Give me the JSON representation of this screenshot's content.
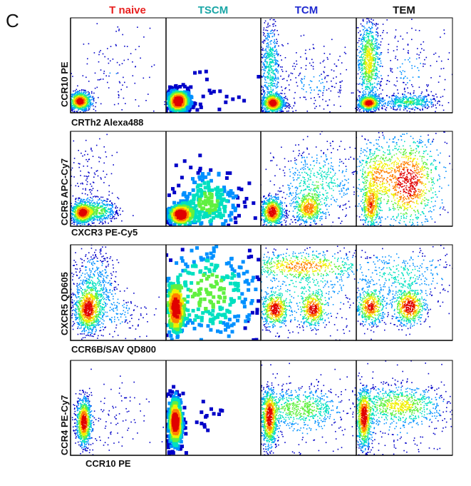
{
  "figure": {
    "panel_label": "C"
  },
  "chart_data": {
    "type": "scatter",
    "plot_style": "flow-cytometry pseudocolor density plots",
    "columns": [
      {
        "name": "T naive",
        "color": "#e8201f"
      },
      {
        "name": "TSCM",
        "color": "#1aa6a6"
      },
      {
        "name": "TCM",
        "color": "#1f2ad0"
      },
      {
        "name": "TEM",
        "color": "#111111"
      }
    ],
    "rows": [
      {
        "ylabel": "CCR10 PE",
        "xlabel": "CRTh2 Alexa488",
        "populations": [
          [
            {
              "x": 0.1,
              "y": 0.12,
              "sx": 0.06,
              "sy": 0.05,
              "w": 1.0,
              "n": 900
            },
            {
              "x": 0.45,
              "y": 0.4,
              "sx": 0.25,
              "sy": 0.3,
              "w": 0.12,
              "n": 120
            }
          ],
          [
            {
              "x": 0.13,
              "y": 0.12,
              "sx": 0.06,
              "sy": 0.06,
              "w": 1.0,
              "n": 420,
              "pix": 5
            },
            {
              "x": 0.45,
              "y": 0.2,
              "sx": 0.25,
              "sy": 0.15,
              "w": 0.1,
              "n": 30,
              "pix": 5
            }
          ],
          [
            {
              "x": 0.13,
              "y": 0.1,
              "sx": 0.06,
              "sy": 0.05,
              "w": 1.0,
              "n": 900
            },
            {
              "x": 0.1,
              "y": 0.5,
              "sx": 0.05,
              "sy": 0.25,
              "w": 0.4,
              "n": 500
            },
            {
              "x": 0.55,
              "y": 0.3,
              "sx": 0.25,
              "sy": 0.2,
              "w": 0.15,
              "n": 220
            }
          ],
          [
            {
              "x": 0.13,
              "y": 0.1,
              "sx": 0.06,
              "sy": 0.04,
              "w": 1.0,
              "n": 700
            },
            {
              "x": 0.13,
              "y": 0.55,
              "sx": 0.06,
              "sy": 0.22,
              "w": 0.7,
              "n": 800
            },
            {
              "x": 0.55,
              "y": 0.11,
              "sx": 0.15,
              "sy": 0.04,
              "w": 0.4,
              "n": 400
            },
            {
              "x": 0.55,
              "y": 0.45,
              "sx": 0.25,
              "sy": 0.25,
              "w": 0.15,
              "n": 200
            }
          ]
        ]
      },
      {
        "ylabel": "CCR5 APC-Cy7",
        "xlabel": "CXCR3 PE-Cy5",
        "populations": [
          [
            {
              "x": 0.12,
              "y": 0.14,
              "sx": 0.06,
              "sy": 0.06,
              "w": 1.0,
              "n": 900
            },
            {
              "x": 0.3,
              "y": 0.16,
              "sx": 0.1,
              "sy": 0.06,
              "w": 0.5,
              "n": 400
            },
            {
              "x": 0.2,
              "y": 0.45,
              "sx": 0.15,
              "sy": 0.25,
              "w": 0.12,
              "n": 150
            }
          ],
          [
            {
              "x": 0.15,
              "y": 0.12,
              "sx": 0.07,
              "sy": 0.06,
              "w": 1.0,
              "n": 300,
              "pix": 5
            },
            {
              "x": 0.45,
              "y": 0.25,
              "sx": 0.18,
              "sy": 0.2,
              "w": 0.5,
              "n": 260,
              "pix": 5
            }
          ],
          [
            {
              "x": 0.12,
              "y": 0.15,
              "sx": 0.06,
              "sy": 0.08,
              "w": 1.0,
              "n": 800
            },
            {
              "x": 0.5,
              "y": 0.18,
              "sx": 0.08,
              "sy": 0.08,
              "w": 0.7,
              "n": 500
            },
            {
              "x": 0.6,
              "y": 0.45,
              "sx": 0.22,
              "sy": 0.2,
              "w": 0.4,
              "n": 500
            }
          ],
          [
            {
              "x": 0.15,
              "y": 0.2,
              "sx": 0.05,
              "sy": 0.12,
              "w": 0.8,
              "n": 450
            },
            {
              "x": 0.55,
              "y": 0.45,
              "sx": 0.15,
              "sy": 0.25,
              "w": 0.8,
              "n": 700
            },
            {
              "x": 0.2,
              "y": 0.55,
              "sx": 0.1,
              "sy": 0.15,
              "w": 0.5,
              "n": 300
            },
            {
              "x": 0.45,
              "y": 0.5,
              "sx": 0.35,
              "sy": 0.28,
              "w": 0.4,
              "n": 400
            }
          ]
        ]
      },
      {
        "ylabel": "CXCR5 QD605",
        "xlabel": "CCR6B/SAV QD800",
        "populations": [
          [
            {
              "x": 0.18,
              "y": 0.32,
              "sx": 0.07,
              "sy": 0.12,
              "w": 1.0,
              "n": 900
            },
            {
              "x": 0.25,
              "y": 0.6,
              "sx": 0.12,
              "sy": 0.2,
              "w": 0.3,
              "n": 400
            },
            {
              "x": 0.45,
              "y": 0.3,
              "sx": 0.2,
              "sy": 0.15,
              "w": 0.2,
              "n": 200
            }
          ],
          [
            {
              "x": 0.1,
              "y": 0.32,
              "sx": 0.05,
              "sy": 0.15,
              "w": 1.0,
              "n": 220,
              "pix": 5
            },
            {
              "x": 0.45,
              "y": 0.5,
              "sx": 0.3,
              "sy": 0.3,
              "w": 0.6,
              "n": 320,
              "pix": 5
            }
          ],
          [
            {
              "x": 0.15,
              "y": 0.32,
              "sx": 0.07,
              "sy": 0.09,
              "w": 1.0,
              "n": 500
            },
            {
              "x": 0.55,
              "y": 0.32,
              "sx": 0.07,
              "sy": 0.09,
              "w": 0.9,
              "n": 450
            },
            {
              "x": 0.45,
              "y": 0.78,
              "sx": 0.35,
              "sy": 0.07,
              "w": 0.7,
              "n": 500
            },
            {
              "x": 0.45,
              "y": 0.55,
              "sx": 0.35,
              "sy": 0.25,
              "w": 0.3,
              "n": 400
            }
          ],
          [
            {
              "x": 0.15,
              "y": 0.35,
              "sx": 0.08,
              "sy": 0.1,
              "w": 0.9,
              "n": 500
            },
            {
              "x": 0.55,
              "y": 0.35,
              "sx": 0.09,
              "sy": 0.1,
              "w": 1.0,
              "n": 600
            },
            {
              "x": 0.45,
              "y": 0.7,
              "sx": 0.35,
              "sy": 0.15,
              "w": 0.3,
              "n": 400
            }
          ]
        ]
      },
      {
        "ylabel": "CCR4 PE-Cy7",
        "xlabel": "CCR10 PE",
        "populations": [
          [
            {
              "x": 0.14,
              "y": 0.35,
              "sx": 0.04,
              "sy": 0.13,
              "w": 1.0,
              "n": 900
            },
            {
              "x": 0.4,
              "y": 0.35,
              "sx": 0.2,
              "sy": 0.2,
              "w": 0.1,
              "n": 100
            }
          ],
          [
            {
              "x": 0.1,
              "y": 0.35,
              "sx": 0.04,
              "sy": 0.15,
              "w": 1.0,
              "n": 420,
              "pix": 5
            },
            {
              "x": 0.4,
              "y": 0.4,
              "sx": 0.1,
              "sy": 0.1,
              "w": 0.05,
              "n": 15,
              "pix": 5
            }
          ],
          [
            {
              "x": 0.09,
              "y": 0.38,
              "sx": 0.04,
              "sy": 0.16,
              "w": 1.0,
              "n": 800
            },
            {
              "x": 0.4,
              "y": 0.5,
              "sx": 0.25,
              "sy": 0.1,
              "w": 0.5,
              "n": 600
            },
            {
              "x": 0.45,
              "y": 0.35,
              "sx": 0.3,
              "sy": 0.25,
              "w": 0.15,
              "n": 200
            }
          ],
          [
            {
              "x": 0.08,
              "y": 0.38,
              "sx": 0.04,
              "sy": 0.16,
              "w": 1.0,
              "n": 800
            },
            {
              "x": 0.45,
              "y": 0.53,
              "sx": 0.25,
              "sy": 0.1,
              "w": 0.6,
              "n": 700
            },
            {
              "x": 0.45,
              "y": 0.35,
              "sx": 0.3,
              "sy": 0.25,
              "w": 0.15,
              "n": 200
            }
          ]
        ]
      }
    ],
    "grid": false,
    "legend": "none",
    "colormap": [
      "#0000c8",
      "#0090ff",
      "#00e0c0",
      "#60f040",
      "#f0f000",
      "#ff8000",
      "#e00000"
    ]
  }
}
